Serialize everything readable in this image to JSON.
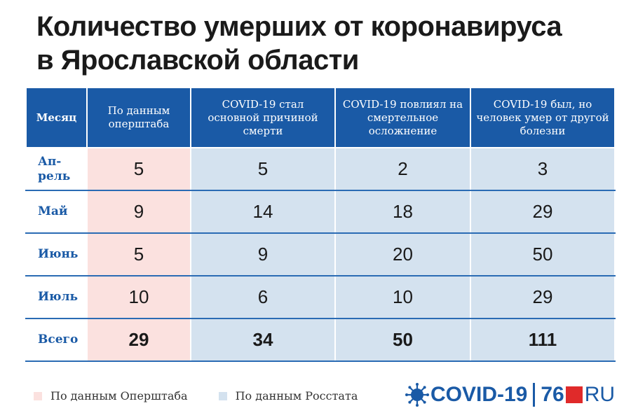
{
  "title": {
    "line1": "Количество умерших от коронавируса",
    "line2": "в Ярославской области"
  },
  "chart_data": {
    "type": "table",
    "columns": [
      "Месяц",
      "По данным оперштаба",
      "COVID-19 стал основной причиной смерти",
      "COVID-19 повлиял на смертельное осложнение",
      "COVID-19 был, но человек умер от другой болезни"
    ],
    "rows": [
      {
        "month": "Ап-рель",
        "values": [
          "5",
          "5",
          "2",
          "3"
        ]
      },
      {
        "month": "Май",
        "values": [
          "9",
          "14",
          "18",
          "29"
        ]
      },
      {
        "month": "Июнь",
        "values": [
          "5",
          "9",
          "20",
          "50"
        ]
      },
      {
        "month": "Июль",
        "values": [
          "10",
          "6",
          "10",
          "29"
        ]
      },
      {
        "month": "Всего",
        "values": [
          "29",
          "34",
          "50",
          "111"
        ]
      }
    ]
  },
  "legend": [
    {
      "label": "По данным Оперштаба",
      "color": "#fbe1df"
    },
    {
      "label": "По данным Росстата",
      "color": "#d4e2ef"
    }
  ],
  "logo": {
    "covid_text": "COVID-19",
    "number": "76",
    "ru": "RU",
    "icon": "virus-icon"
  }
}
